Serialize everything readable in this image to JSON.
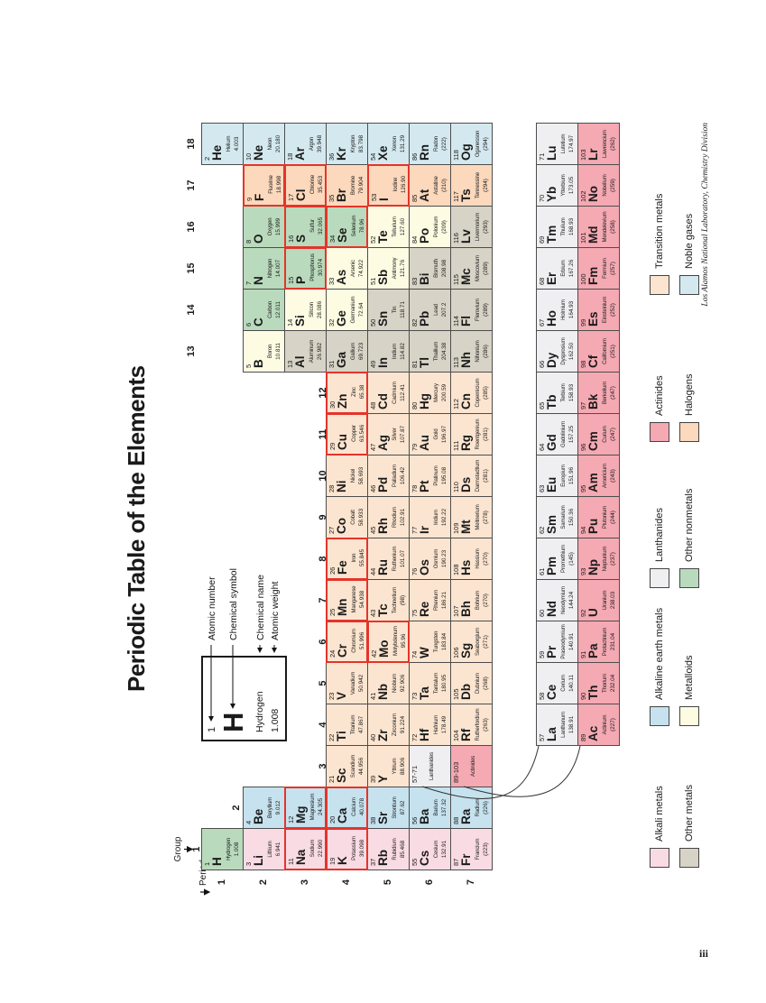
{
  "title": "Periodic Table of the Elements",
  "page_number": "iii",
  "credit": "Los Alamos National Laboratory, Chemistry Division",
  "labels": {
    "group": "Group",
    "period": "Period"
  },
  "group_numbers": [
    1,
    2,
    3,
    4,
    5,
    6,
    7,
    8,
    9,
    10,
    11,
    12,
    13,
    14,
    15,
    16,
    17,
    18
  ],
  "period_numbers": [
    1,
    2,
    3,
    4,
    5,
    6,
    7
  ],
  "annotations": {
    "labels": [
      "Atomic number",
      "Chemical symbol",
      "Chemical name",
      "Atomic weight"
    ],
    "example": {
      "number": "1",
      "symbol": "H",
      "name": "Hydrogen",
      "weight": "1.008"
    }
  },
  "colors": {
    "alkali": "#f9dbe4",
    "alkaline": "#c6e2ee",
    "transition": "#fce5d0",
    "othermetal": "#d7d3c6",
    "metalloid": "#fdfce3",
    "nonmetal": "#b9dabc",
    "halogen": "#fcd8bc",
    "noble": "#d4e9ef",
    "lanthanide": "#efeff2",
    "actinide": "#f4a9b3",
    "highlight_border": "#e4342b",
    "grid_border": "#4d4d4d"
  },
  "legend": {
    "rows": [
      [
        {
          "label": "Alkali metals",
          "cat": "alkali"
        },
        {
          "label": "Alkaline earth metals",
          "cat": "alkaline"
        },
        {
          "label": "Lanthanides",
          "cat": "lanthanide"
        },
        {
          "label": "Actinides",
          "cat": "actinide"
        },
        {
          "label": "Transition metals",
          "cat": "transition"
        }
      ],
      [
        {
          "label": "Other metals",
          "cat": "othermetal"
        },
        {
          "label": "Metalloids",
          "cat": "metalloid"
        },
        {
          "label": "Other nonmetals",
          "cat": "nonmetal"
        },
        {
          "label": "Halogens",
          "cat": "halogen"
        },
        {
          "label": "Noble gases",
          "cat": "noble"
        }
      ]
    ]
  },
  "element_fields": [
    "symbol",
    "number",
    "name",
    "weight",
    "category",
    "group",
    "period",
    "highlighted"
  ],
  "elements": [
    [
      "H",
      "1",
      "Hydrogen",
      "1.008",
      "nonmetal",
      1,
      1,
      0
    ],
    [
      "He",
      "2",
      "Helium",
      "4.003",
      "noble",
      18,
      1,
      0
    ],
    [
      "Li",
      "3",
      "Lithium",
      "6.941",
      "alkali",
      1,
      2,
      0
    ],
    [
      "Be",
      "4",
      "Beryllium",
      "9.012",
      "alkaline",
      2,
      2,
      0
    ],
    [
      "B",
      "5",
      "Boron",
      "10.811",
      "metalloid",
      13,
      2,
      0
    ],
    [
      "C",
      "6",
      "Carbon",
      "12.011",
      "nonmetal",
      14,
      2,
      0
    ],
    [
      "N",
      "7",
      "Nitrogen",
      "14.007",
      "nonmetal",
      15,
      2,
      0
    ],
    [
      "O",
      "8",
      "Oxygen",
      "15.999",
      "nonmetal",
      16,
      2,
      0
    ],
    [
      "F",
      "9",
      "Fluorine",
      "18.998",
      "halogen",
      17,
      2,
      1
    ],
    [
      "Ne",
      "10",
      "Neon",
      "20.180",
      "noble",
      18,
      2,
      0
    ],
    [
      "Na",
      "11",
      "Sodium",
      "22.990",
      "alkali",
      1,
      3,
      1
    ],
    [
      "Mg",
      "12",
      "Magnesium",
      "24.305",
      "alkaline",
      2,
      3,
      1
    ],
    [
      "Al",
      "13",
      "Aluminum",
      "26.982",
      "othermetal",
      13,
      3,
      0
    ],
    [
      "Si",
      "14",
      "Silicon",
      "28.086",
      "metalloid",
      14,
      3,
      0
    ],
    [
      "P",
      "15",
      "Phosphorus",
      "30.974",
      "nonmetal",
      15,
      3,
      1
    ],
    [
      "S",
      "16",
      "Sulfur",
      "32.065",
      "nonmetal",
      16,
      3,
      1
    ],
    [
      "Cl",
      "17",
      "Chlorine",
      "35.453",
      "halogen",
      17,
      3,
      1
    ],
    [
      "Ar",
      "18",
      "Argon",
      "39.948",
      "noble",
      18,
      3,
      0
    ],
    [
      "K",
      "19",
      "Potassium",
      "39.098",
      "alkali",
      1,
      4,
      1
    ],
    [
      "Ca",
      "20",
      "Calcium",
      "40.078",
      "alkaline",
      2,
      4,
      1
    ],
    [
      "Sc",
      "21",
      "Scandium",
      "44.956",
      "transition",
      3,
      4,
      0
    ],
    [
      "Ti",
      "22",
      "Titanium",
      "47.867",
      "transition",
      4,
      4,
      0
    ],
    [
      "V",
      "23",
      "Vanadium",
      "50.942",
      "transition",
      5,
      4,
      0
    ],
    [
      "Cr",
      "24",
      "Chromium",
      "51.996",
      "transition",
      6,
      4,
      1
    ],
    [
      "Mn",
      "25",
      "Manganese",
      "54.938",
      "transition",
      7,
      4,
      1
    ],
    [
      "Fe",
      "26",
      "Iron",
      "55.845",
      "transition",
      8,
      4,
      1
    ],
    [
      "Co",
      "27",
      "Cobalt",
      "58.933",
      "transition",
      9,
      4,
      0
    ],
    [
      "Ni",
      "28",
      "Nickel",
      "58.693",
      "transition",
      10,
      4,
      0
    ],
    [
      "Cu",
      "29",
      "Copper",
      "63.546",
      "transition",
      11,
      4,
      1
    ],
    [
      "Zn",
      "30",
      "Zinc",
      "65.38",
      "transition",
      12,
      4,
      1
    ],
    [
      "Ga",
      "31",
      "Gallium",
      "69.723",
      "othermetal",
      13,
      4,
      0
    ],
    [
      "Ge",
      "32",
      "Germanium",
      "72.64",
      "metalloid",
      14,
      4,
      0
    ],
    [
      "As",
      "33",
      "Arsenic",
      "74.922",
      "metalloid",
      15,
      4,
      0
    ],
    [
      "Se",
      "34",
      "Selenium",
      "78.96",
      "nonmetal",
      16,
      4,
      1
    ],
    [
      "Br",
      "35",
      "Bromine",
      "79.904",
      "halogen",
      17,
      4,
      0
    ],
    [
      "Kr",
      "36",
      "Krypton",
      "83.798",
      "noble",
      18,
      4,
      0
    ],
    [
      "Rb",
      "37",
      "Rubidium",
      "85.468",
      "alkali",
      1,
      5,
      0
    ],
    [
      "Sr",
      "38",
      "Strontium",
      "87.62",
      "alkaline",
      2,
      5,
      0
    ],
    [
      "Y",
      "39",
      "Yttrium",
      "88.906",
      "transition",
      3,
      5,
      0
    ],
    [
      "Zr",
      "40",
      "Zirconium",
      "91.224",
      "transition",
      4,
      5,
      0
    ],
    [
      "Nb",
      "41",
      "Niobium",
      "92.906",
      "transition",
      5,
      5,
      0
    ],
    [
      "Mo",
      "42",
      "Molybdenum",
      "95.96",
      "transition",
      6,
      5,
      1
    ],
    [
      "Tc",
      "43",
      "Technetium",
      "(98)",
      "transition",
      7,
      5,
      0
    ],
    [
      "Ru",
      "44",
      "Ruthenium",
      "101.07",
      "transition",
      8,
      5,
      0
    ],
    [
      "Rh",
      "45",
      "Rhodium",
      "102.91",
      "transition",
      9,
      5,
      0
    ],
    [
      "Pd",
      "46",
      "Palladium",
      "106.42",
      "transition",
      10,
      5,
      0
    ],
    [
      "Ag",
      "47",
      "Silver",
      "107.87",
      "transition",
      11,
      5,
      0
    ],
    [
      "Cd",
      "48",
      "Cadmium",
      "112.41",
      "transition",
      12,
      5,
      0
    ],
    [
      "In",
      "49",
      "Indium",
      "114.82",
      "othermetal",
      13,
      5,
      0
    ],
    [
      "Sn",
      "50",
      "Tin",
      "118.71",
      "othermetal",
      14,
      5,
      0
    ],
    [
      "Sb",
      "51",
      "Antimony",
      "121.76",
      "metalloid",
      15,
      5,
      0
    ],
    [
      "Te",
      "52",
      "Tellurium",
      "127.60",
      "metalloid",
      16,
      5,
      0
    ],
    [
      "I",
      "53",
      "Iodine",
      "126.90",
      "halogen",
      17,
      5,
      1
    ],
    [
      "Xe",
      "54",
      "Xenon",
      "131.29",
      "noble",
      18,
      5,
      0
    ],
    [
      "Cs",
      "55",
      "Cesium",
      "132.91",
      "alkali",
      1,
      6,
      0
    ],
    [
      "Ba",
      "56",
      "Barium",
      "137.32",
      "alkaline",
      2,
      6,
      0
    ],
    [
      "",
      "57-71",
      "Lanthanides",
      "",
      "lanthanide",
      3,
      6,
      0
    ],
    [
      "Hf",
      "72",
      "Hafnium",
      "178.49",
      "transition",
      4,
      6,
      0
    ],
    [
      "Ta",
      "73",
      "Tantalum",
      "180.95",
      "transition",
      5,
      6,
      0
    ],
    [
      "W",
      "74",
      "Tungsten",
      "183.84",
      "transition",
      6,
      6,
      0
    ],
    [
      "Re",
      "75",
      "Rhenium",
      "186.21",
      "transition",
      7,
      6,
      0
    ],
    [
      "Os",
      "76",
      "Osmium",
      "190.23",
      "transition",
      8,
      6,
      0
    ],
    [
      "Ir",
      "77",
      "Iridium",
      "192.22",
      "transition",
      9,
      6,
      0
    ],
    [
      "Pt",
      "78",
      "Platinum",
      "195.08",
      "transition",
      10,
      6,
      0
    ],
    [
      "Au",
      "79",
      "Gold",
      "196.97",
      "transition",
      11,
      6,
      0
    ],
    [
      "Hg",
      "80",
      "Mercury",
      "200.59",
      "transition",
      12,
      6,
      0
    ],
    [
      "Tl",
      "81",
      "Thallium",
      "204.38",
      "othermetal",
      13,
      6,
      0
    ],
    [
      "Pb",
      "82",
      "Lead",
      "207.2",
      "othermetal",
      14,
      6,
      0
    ],
    [
      "Bi",
      "83",
      "Bismuth",
      "208.98",
      "othermetal",
      15,
      6,
      0
    ],
    [
      "Po",
      "84",
      "Polonium",
      "(209)",
      "metalloid",
      16,
      6,
      0
    ],
    [
      "At",
      "85",
      "Astatine",
      "(210)",
      "halogen",
      17,
      6,
      0
    ],
    [
      "Rn",
      "86",
      "Radon",
      "(222)",
      "noble",
      18,
      6,
      0
    ],
    [
      "Fr",
      "87",
      "Francium",
      "(223)",
      "alkali",
      1,
      7,
      0
    ],
    [
      "Ra",
      "88",
      "Radium",
      "(226)",
      "alkaline",
      2,
      7,
      0
    ],
    [
      "",
      "89-103",
      "Actinides",
      "",
      "actinide",
      3,
      7,
      0
    ],
    [
      "Rf",
      "104",
      "Rutherfordium",
      "(263)",
      "transition",
      4,
      7,
      0
    ],
    [
      "Db",
      "105",
      "Dubnium",
      "(268)",
      "transition",
      5,
      7,
      0
    ],
    [
      "Sg",
      "106",
      "Seaborgium",
      "(271)",
      "transition",
      6,
      7,
      0
    ],
    [
      "Bh",
      "107",
      "Bohrium",
      "(270)",
      "transition",
      7,
      7,
      0
    ],
    [
      "Hs",
      "108",
      "Hassium",
      "(270)",
      "transition",
      8,
      7,
      0
    ],
    [
      "Mt",
      "109",
      "Meitnerium",
      "(278)",
      "transition",
      9,
      7,
      0
    ],
    [
      "Ds",
      "110",
      "Darmstadtium",
      "(281)",
      "transition",
      10,
      7,
      0
    ],
    [
      "Rg",
      "111",
      "Roentgenium",
      "(281)",
      "transition",
      11,
      7,
      0
    ],
    [
      "Cn",
      "112",
      "Copernicium",
      "(285)",
      "transition",
      12,
      7,
      0
    ],
    [
      "Nh",
      "113",
      "Nihonium",
      "(286)",
      "othermetal",
      13,
      7,
      0
    ],
    [
      "Fl",
      "114",
      "Flerovium",
      "(289)",
      "othermetal",
      14,
      7,
      0
    ],
    [
      "Mc",
      "115",
      "Moscovium",
      "(289)",
      "othermetal",
      15,
      7,
      0
    ],
    [
      "Lv",
      "116",
      "Livermorium",
      "(293)",
      "othermetal",
      16,
      7,
      0
    ],
    [
      "Ts",
      "117",
      "Tennessine",
      "(294)",
      "halogen",
      17,
      7,
      0
    ],
    [
      "Og",
      "118",
      "Oganesson",
      "(294)",
      "noble",
      18,
      7,
      0
    ],
    [
      "La",
      "57",
      "Lanthanum",
      "138.91",
      "lanthanide",
      4,
      "L",
      0
    ],
    [
      "Ce",
      "58",
      "Cerium",
      "140.11",
      "lanthanide",
      5,
      "L",
      0
    ],
    [
      "Pr",
      "59",
      "Praseodymium",
      "140.91",
      "lanthanide",
      6,
      "L",
      0
    ],
    [
      "Nd",
      "60",
      "Neodymium",
      "144.24",
      "lanthanide",
      7,
      "L",
      0
    ],
    [
      "Pm",
      "61",
      "Promethium",
      "(145)",
      "lanthanide",
      8,
      "L",
      0
    ],
    [
      "Sm",
      "62",
      "Samarium",
      "150.36",
      "lanthanide",
      9,
      "L",
      0
    ],
    [
      "Eu",
      "63",
      "Europium",
      "151.96",
      "lanthanide",
      10,
      "L",
      0
    ],
    [
      "Gd",
      "64",
      "Gadolinium",
      "157.25",
      "lanthanide",
      11,
      "L",
      0
    ],
    [
      "Tb",
      "65",
      "Terbium",
      "158.93",
      "lanthanide",
      12,
      "L",
      0
    ],
    [
      "Dy",
      "66",
      "Dysprosium",
      "162.50",
      "lanthanide",
      13,
      "L",
      0
    ],
    [
      "Ho",
      "67",
      "Holmium",
      "164.93",
      "lanthanide",
      14,
      "L",
      0
    ],
    [
      "Er",
      "68",
      "Erbium",
      "167.26",
      "lanthanide",
      15,
      "L",
      0
    ],
    [
      "Tm",
      "69",
      "Thulium",
      "168.93",
      "lanthanide",
      16,
      "L",
      0
    ],
    [
      "Yb",
      "70",
      "Ytterbium",
      "173.05",
      "lanthanide",
      17,
      "L",
      0
    ],
    [
      "Lu",
      "71",
      "Lutetium",
      "174.97",
      "lanthanide",
      18,
      "L",
      0
    ],
    [
      "Ac",
      "89",
      "Actinium",
      "(227)",
      "actinide",
      4,
      "A",
      0
    ],
    [
      "Th",
      "90",
      "Thorium",
      "232.04",
      "actinide",
      5,
      "A",
      0
    ],
    [
      "Pa",
      "91",
      "Protactinium",
      "231.04",
      "actinide",
      6,
      "A",
      0
    ],
    [
      "U",
      "92",
      "Uranium",
      "238.03",
      "actinide",
      7,
      "A",
      0
    ],
    [
      "Np",
      "93",
      "Neptunium",
      "(237)",
      "actinide",
      8,
      "A",
      0
    ],
    [
      "Pu",
      "94",
      "Plutonium",
      "(244)",
      "actinide",
      9,
      "A",
      0
    ],
    [
      "Am",
      "95",
      "Americium",
      "(243)",
      "actinide",
      10,
      "A",
      0
    ],
    [
      "Cm",
      "96",
      "Curium",
      "(247)",
      "actinide",
      11,
      "A",
      0
    ],
    [
      "Bk",
      "97",
      "Berkelium",
      "(247)",
      "actinide",
      12,
      "A",
      0
    ],
    [
      "Cf",
      "98",
      "Californium",
      "(251)",
      "actinide",
      13,
      "A",
      0
    ],
    [
      "Es",
      "99",
      "Einsteinium",
      "(252)",
      "actinide",
      14,
      "A",
      0
    ],
    [
      "Fm",
      "100",
      "Fermium",
      "(257)",
      "actinide",
      15,
      "A",
      0
    ],
    [
      "Md",
      "101",
      "Mendelevium",
      "(258)",
      "actinide",
      16,
      "A",
      0
    ],
    [
      "No",
      "102",
      "Nobelium",
      "(259)",
      "actinide",
      17,
      "A",
      0
    ],
    [
      "Lr",
      "103",
      "Lawrencium",
      "(262)",
      "actinide",
      18,
      "A",
      0
    ]
  ]
}
